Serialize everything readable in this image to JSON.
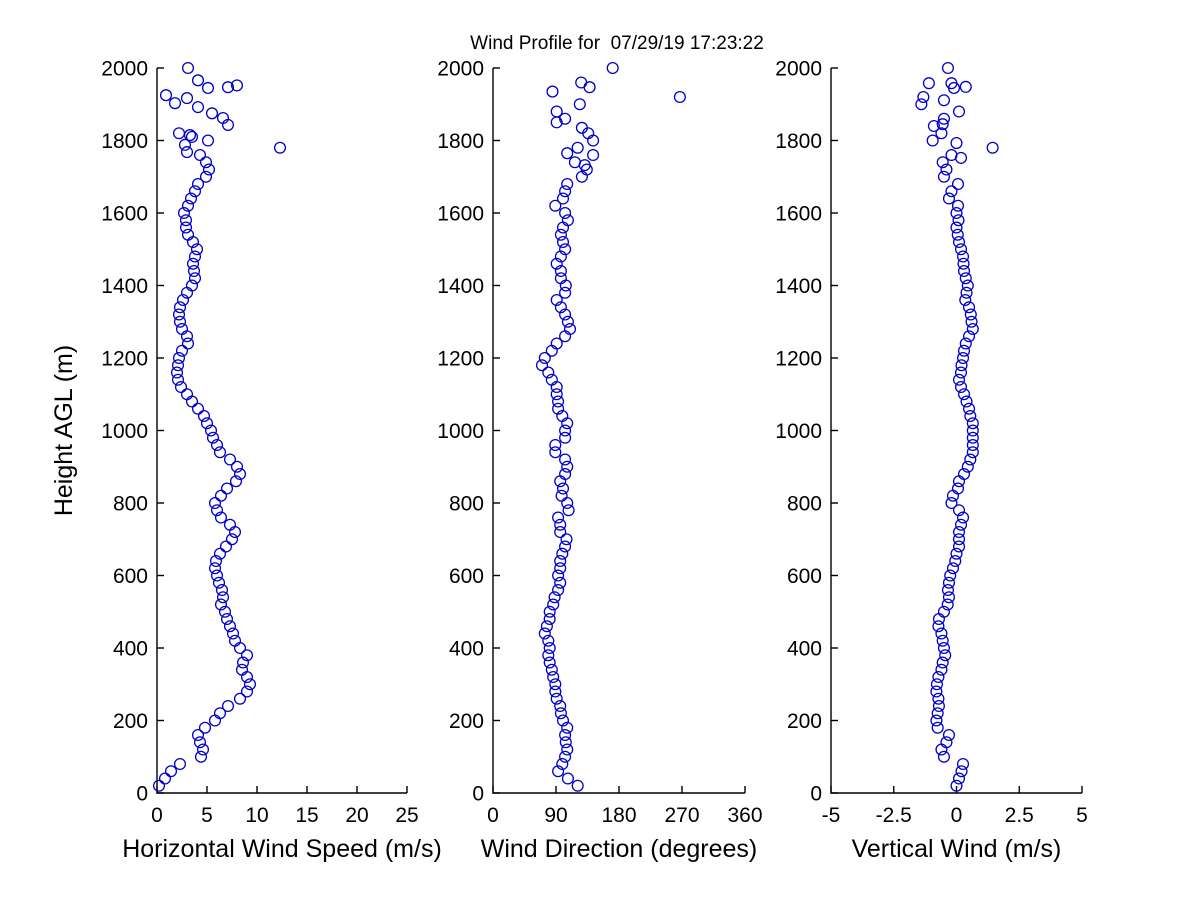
{
  "title": "Wind Profile for  07/29/19 17:23:22",
  "marker_color": "#0000CC",
  "axis_color": "#000000",
  "background_color": "#FFFFFF",
  "chart_data": [
    {
      "type": "scatter",
      "title": "Wind Profile for  07/29/19 17:23:22",
      "xlabel": "Horizontal Wind Speed (m/s)",
      "ylabel": "Height AGL (m)",
      "xlim": [
        0,
        25
      ],
      "ylim": [
        0,
        2000
      ],
      "xticks": [
        0,
        5,
        10,
        15,
        20,
        25
      ],
      "xtick_labels": [
        "0",
        "5",
        "10",
        "15",
        "20",
        "25"
      ],
      "yticks": [
        0,
        200,
        400,
        600,
        800,
        1000,
        1200,
        1400,
        1600,
        1800,
        2000
      ],
      "ytick_labels": [
        "0",
        "200",
        "400",
        "600",
        "800",
        "1000",
        "1200",
        "1400",
        "1600",
        "1800",
        "2000"
      ],
      "grid": false,
      "legend": null,
      "point_format": "[wind_speed_mps, height_m]",
      "points": [
        [
          0.2,
          20
        ],
        [
          0.8,
          40
        ],
        [
          1.4,
          60
        ],
        [
          2.3,
          80
        ],
        [
          4.4,
          100
        ],
        [
          4.6,
          120
        ],
        [
          4.3,
          140
        ],
        [
          4.1,
          160
        ],
        [
          4.8,
          180
        ],
        [
          5.8,
          200
        ],
        [
          6.3,
          220
        ],
        [
          7.1,
          240
        ],
        [
          8.3,
          260
        ],
        [
          9.0,
          280
        ],
        [
          9.3,
          300
        ],
        [
          9.0,
          320
        ],
        [
          8.5,
          340
        ],
        [
          8.6,
          360
        ],
        [
          9.0,
          380
        ],
        [
          8.3,
          400
        ],
        [
          7.8,
          420
        ],
        [
          7.6,
          440
        ],
        [
          7.3,
          460
        ],
        [
          7.0,
          480
        ],
        [
          6.8,
          500
        ],
        [
          6.4,
          520
        ],
        [
          6.6,
          540
        ],
        [
          6.5,
          560
        ],
        [
          6.2,
          580
        ],
        [
          6.0,
          600
        ],
        [
          5.8,
          620
        ],
        [
          5.9,
          640
        ],
        [
          6.3,
          660
        ],
        [
          6.9,
          680
        ],
        [
          7.5,
          700
        ],
        [
          7.8,
          720
        ],
        [
          7.3,
          740
        ],
        [
          6.4,
          760
        ],
        [
          6.0,
          780
        ],
        [
          5.8,
          800
        ],
        [
          6.4,
          820
        ],
        [
          7.0,
          840
        ],
        [
          7.9,
          860
        ],
        [
          8.3,
          880
        ],
        [
          8.0,
          900
        ],
        [
          7.3,
          920
        ],
        [
          6.3,
          940
        ],
        [
          6.0,
          960
        ],
        [
          5.6,
          980
        ],
        [
          5.4,
          1000
        ],
        [
          5.0,
          1020
        ],
        [
          4.7,
          1040
        ],
        [
          4.1,
          1060
        ],
        [
          3.5,
          1080
        ],
        [
          3.0,
          1100
        ],
        [
          2.4,
          1120
        ],
        [
          2.1,
          1140
        ],
        [
          2.0,
          1160
        ],
        [
          2.1,
          1180
        ],
        [
          2.2,
          1200
        ],
        [
          2.5,
          1220
        ],
        [
          3.1,
          1240
        ],
        [
          3.0,
          1260
        ],
        [
          2.5,
          1280
        ],
        [
          2.3,
          1300
        ],
        [
          2.2,
          1320
        ],
        [
          2.3,
          1340
        ],
        [
          2.6,
          1360
        ],
        [
          3.0,
          1380
        ],
        [
          3.5,
          1400
        ],
        [
          3.8,
          1420
        ],
        [
          3.7,
          1440
        ],
        [
          3.6,
          1460
        ],
        [
          3.8,
          1480
        ],
        [
          4.0,
          1500
        ],
        [
          3.6,
          1520
        ],
        [
          3.1,
          1540
        ],
        [
          2.9,
          1560
        ],
        [
          2.9,
          1580
        ],
        [
          2.7,
          1600
        ],
        [
          3.1,
          1620
        ],
        [
          3.4,
          1640
        ],
        [
          3.8,
          1660
        ],
        [
          4.1,
          1680
        ],
        [
          4.9,
          1700
        ],
        [
          5.2,
          1720
        ],
        [
          4.9,
          1740
        ],
        [
          4.3,
          1760
        ],
        [
          3.0,
          1768
        ],
        [
          12.3,
          1780
        ],
        [
          2.8,
          1788
        ],
        [
          5.1,
          1800
        ],
        [
          3.5,
          1810
        ],
        [
          2.2,
          1820
        ],
        [
          3.3,
          1815
        ],
        [
          7.1,
          1843
        ],
        [
          6.6,
          1862
        ],
        [
          5.5,
          1875
        ],
        [
          4.1,
          1892
        ],
        [
          1.8,
          1903
        ],
        [
          3.0,
          1917
        ],
        [
          0.9,
          1925
        ],
        [
          7.1,
          1947
        ],
        [
          5.1,
          1945
        ],
        [
          8.0,
          1952
        ],
        [
          4.1,
          1966
        ],
        [
          3.1,
          2000
        ]
      ]
    },
    {
      "type": "scatter",
      "xlabel": "Wind Direction (degrees)",
      "ylabel": "Height AGL (m)",
      "xlim": [
        0,
        360
      ],
      "ylim": [
        0,
        2000
      ],
      "xticks": [
        0,
        90,
        180,
        270,
        360
      ],
      "xtick_labels": [
        "0",
        "90",
        "180",
        "270",
        "360"
      ],
      "yticks": [
        0,
        200,
        400,
        600,
        800,
        1000,
        1200,
        1400,
        1600,
        1800,
        2000
      ],
      "ytick_labels": [
        "0",
        "200",
        "400",
        "600",
        "800",
        "1000",
        "1200",
        "1400",
        "1600",
        "1800",
        "2000"
      ],
      "grid": false,
      "legend": null,
      "point_format": "[wind_direction_deg, height_m]",
      "points": [
        [
          121,
          20
        ],
        [
          107,
          40
        ],
        [
          93,
          60
        ],
        [
          99,
          80
        ],
        [
          103,
          100
        ],
        [
          106,
          120
        ],
        [
          104,
          140
        ],
        [
          103,
          160
        ],
        [
          106,
          180
        ],
        [
          100,
          200
        ],
        [
          97,
          220
        ],
        [
          96,
          240
        ],
        [
          91,
          260
        ],
        [
          89,
          280
        ],
        [
          89,
          300
        ],
        [
          86,
          320
        ],
        [
          84,
          340
        ],
        [
          81,
          360
        ],
        [
          79,
          380
        ],
        [
          81,
          400
        ],
        [
          79,
          420
        ],
        [
          74,
          440
        ],
        [
          77,
          460
        ],
        [
          81,
          480
        ],
        [
          81,
          500
        ],
        [
          86,
          520
        ],
        [
          88,
          540
        ],
        [
          93,
          560
        ],
        [
          96,
          580
        ],
        [
          93,
          600
        ],
        [
          96,
          620
        ],
        [
          96,
          640
        ],
        [
          99,
          660
        ],
        [
          103,
          680
        ],
        [
          105,
          700
        ],
        [
          96,
          720
        ],
        [
          96,
          740
        ],
        [
          93,
          760
        ],
        [
          108,
          780
        ],
        [
          106,
          800
        ],
        [
          98,
          820
        ],
        [
          100,
          840
        ],
        [
          96,
          860
        ],
        [
          103,
          880
        ],
        [
          106,
          900
        ],
        [
          103,
          920
        ],
        [
          89,
          940
        ],
        [
          89,
          960
        ],
        [
          103,
          980
        ],
        [
          103,
          1000
        ],
        [
          106,
          1020
        ],
        [
          99,
          1040
        ],
        [
          93,
          1060
        ],
        [
          93,
          1080
        ],
        [
          91,
          1100
        ],
        [
          91,
          1120
        ],
        [
          84,
          1140
        ],
        [
          79,
          1160
        ],
        [
          70,
          1180
        ],
        [
          74,
          1200
        ],
        [
          84,
          1220
        ],
        [
          91,
          1240
        ],
        [
          103,
          1260
        ],
        [
          110,
          1280
        ],
        [
          107,
          1300
        ],
        [
          103,
          1320
        ],
        [
          97,
          1340
        ],
        [
          91,
          1360
        ],
        [
          103,
          1380
        ],
        [
          104,
          1400
        ],
        [
          97,
          1420
        ],
        [
          97,
          1440
        ],
        [
          91,
          1460
        ],
        [
          97,
          1480
        ],
        [
          103,
          1500
        ],
        [
          100,
          1520
        ],
        [
          97,
          1540
        ],
        [
          100,
          1560
        ],
        [
          107,
          1580
        ],
        [
          103,
          1600
        ],
        [
          89,
          1620
        ],
        [
          100,
          1640
        ],
        [
          103,
          1660
        ],
        [
          106,
          1680
        ],
        [
          127,
          1700
        ],
        [
          134,
          1720
        ],
        [
          131,
          1732
        ],
        [
          117,
          1740
        ],
        [
          143,
          1760
        ],
        [
          106,
          1765
        ],
        [
          121,
          1780
        ],
        [
          143,
          1800
        ],
        [
          136,
          1820
        ],
        [
          127,
          1835
        ],
        [
          91,
          1850
        ],
        [
          103,
          1860
        ],
        [
          91,
          1880
        ],
        [
          124,
          1900
        ],
        [
          267,
          1920
        ],
        [
          85,
          1935
        ],
        [
          138,
          1947
        ],
        [
          126,
          1960
        ],
        [
          171,
          2000
        ]
      ]
    },
    {
      "type": "scatter",
      "xlabel": "Vertical Wind (m/s)",
      "ylabel": "Height AGL (m)",
      "xlim": [
        -5,
        5
      ],
      "ylim": [
        0,
        2000
      ],
      "xticks": [
        -5,
        -2.5,
        0,
        2.5,
        5
      ],
      "xtick_labels": [
        "-5",
        "-2.5",
        "0",
        "2.5",
        "5"
      ],
      "yticks": [
        0,
        200,
        400,
        600,
        800,
        1000,
        1200,
        1400,
        1600,
        1800,
        2000
      ],
      "ytick_labels": [
        "0",
        "200",
        "400",
        "600",
        "800",
        "1000",
        "1200",
        "1400",
        "1600",
        "1800",
        "2000"
      ],
      "grid": false,
      "legend": null,
      "point_format": "[vertical_wind_mps, height_m]",
      "points": [
        [
          0.0,
          20
        ],
        [
          0.1,
          40
        ],
        [
          0.2,
          60
        ],
        [
          0.26,
          80
        ],
        [
          -0.5,
          100
        ],
        [
          -0.6,
          120
        ],
        [
          -0.4,
          140
        ],
        [
          -0.3,
          160
        ],
        [
          -0.75,
          180
        ],
        [
          -0.8,
          200
        ],
        [
          -0.75,
          220
        ],
        [
          -0.7,
          240
        ],
        [
          -0.72,
          260
        ],
        [
          -0.8,
          280
        ],
        [
          -0.78,
          300
        ],
        [
          -0.72,
          320
        ],
        [
          -0.6,
          340
        ],
        [
          -0.55,
          360
        ],
        [
          -0.45,
          380
        ],
        [
          -0.5,
          400
        ],
        [
          -0.55,
          420
        ],
        [
          -0.6,
          440
        ],
        [
          -0.72,
          460
        ],
        [
          -0.7,
          480
        ],
        [
          -0.5,
          500
        ],
        [
          -0.35,
          520
        ],
        [
          -0.3,
          540
        ],
        [
          -0.34,
          560
        ],
        [
          -0.3,
          580
        ],
        [
          -0.25,
          600
        ],
        [
          -0.14,
          620
        ],
        [
          -0.05,
          640
        ],
        [
          0.0,
          660
        ],
        [
          0.1,
          680
        ],
        [
          0.1,
          700
        ],
        [
          0.1,
          720
        ],
        [
          0.18,
          740
        ],
        [
          0.26,
          760
        ],
        [
          0.1,
          780
        ],
        [
          -0.2,
          800
        ],
        [
          -0.14,
          820
        ],
        [
          0.06,
          840
        ],
        [
          0.1,
          860
        ],
        [
          0.3,
          880
        ],
        [
          0.45,
          900
        ],
        [
          0.55,
          920
        ],
        [
          0.65,
          940
        ],
        [
          0.65,
          960
        ],
        [
          0.65,
          980
        ],
        [
          0.65,
          1000
        ],
        [
          0.65,
          1020
        ],
        [
          0.55,
          1040
        ],
        [
          0.5,
          1060
        ],
        [
          0.4,
          1080
        ],
        [
          0.3,
          1100
        ],
        [
          0.18,
          1120
        ],
        [
          0.1,
          1140
        ],
        [
          0.18,
          1160
        ],
        [
          0.2,
          1180
        ],
        [
          0.26,
          1200
        ],
        [
          0.3,
          1220
        ],
        [
          0.37,
          1240
        ],
        [
          0.5,
          1260
        ],
        [
          0.65,
          1280
        ],
        [
          0.6,
          1300
        ],
        [
          0.57,
          1320
        ],
        [
          0.5,
          1340
        ],
        [
          0.35,
          1360
        ],
        [
          0.4,
          1380
        ],
        [
          0.45,
          1400
        ],
        [
          0.37,
          1420
        ],
        [
          0.3,
          1440
        ],
        [
          0.28,
          1460
        ],
        [
          0.26,
          1480
        ],
        [
          0.18,
          1500
        ],
        [
          0.1,
          1520
        ],
        [
          0.05,
          1540
        ],
        [
          0.0,
          1560
        ],
        [
          0.08,
          1580
        ],
        [
          0.0,
          1600
        ],
        [
          0.06,
          1620
        ],
        [
          -0.3,
          1640
        ],
        [
          -0.2,
          1660
        ],
        [
          0.06,
          1680
        ],
        [
          -0.5,
          1700
        ],
        [
          -0.4,
          1720
        ],
        [
          -0.55,
          1740
        ],
        [
          0.18,
          1752
        ],
        [
          -0.2,
          1760
        ],
        [
          1.44,
          1780
        ],
        [
          0.0,
          1793
        ],
        [
          -0.95,
          1800
        ],
        [
          -0.6,
          1820
        ],
        [
          -0.9,
          1840
        ],
        [
          -0.55,
          1845
        ],
        [
          -0.5,
          1860
        ],
        [
          0.1,
          1880
        ],
        [
          -1.4,
          1900
        ],
        [
          -1.32,
          1920
        ],
        [
          -0.5,
          1911
        ],
        [
          -0.2,
          1958
        ],
        [
          -0.1,
          1945
        ],
        [
          0.37,
          1948
        ],
        [
          -1.1,
          1958
        ],
        [
          -0.34,
          2000
        ]
      ]
    }
  ]
}
